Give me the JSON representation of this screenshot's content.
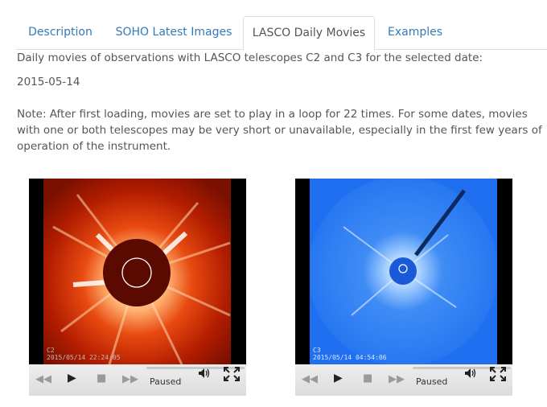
{
  "tabs": [
    {
      "label": "Description",
      "active": false
    },
    {
      "label": "SOHO Latest Images",
      "active": false
    },
    {
      "label": "LASCO Daily Movies",
      "active": true
    },
    {
      "label": "Examples",
      "active": false
    }
  ],
  "intro": "Daily movies of observations with LASCO telescopes C2 and C3 for the selected date:",
  "date": "2015-05-14",
  "note": "Note: After first loading, movies are set to play in a loop for 22 times. For some dates, movies with one or both telescopes may be very short or unavailable, especially in the first few years of operation of the instrument.",
  "movies": [
    {
      "telescope": "C2",
      "timestamp": "2015/05/14 22:24:05",
      "status": "Paused",
      "icons": {
        "rewind": "rewind-icon",
        "play": "play-icon",
        "stop": "stop-icon",
        "forward": "fast-forward-icon",
        "volume": "volume-icon",
        "fullscreen": "fullscreen-icon"
      }
    },
    {
      "telescope": "C3",
      "timestamp": "2015/05/14 04:54:06",
      "status": "Paused",
      "icons": {
        "rewind": "rewind-icon",
        "play": "play-icon",
        "stop": "stop-icon",
        "forward": "fast-forward-icon",
        "volume": "volume-icon",
        "fullscreen": "fullscreen-icon"
      }
    }
  ],
  "colors": {
    "link": "#337ab7",
    "text": "#555555",
    "c2_tint": "#c02000",
    "c3_tint": "#1f6ff0"
  }
}
